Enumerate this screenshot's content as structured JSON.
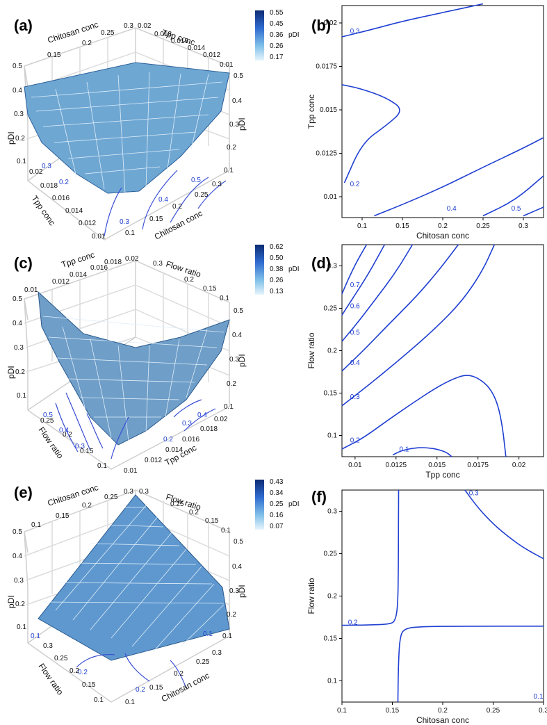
{
  "figure": {
    "colors": {
      "line": "#1f3fd2",
      "axis": "#000000",
      "grid": "#c9c9c9",
      "surface_low": "#e6f3fb",
      "surface_high": "#123c8c"
    }
  },
  "chart_data": [
    {
      "panel": "(a)",
      "type": "heatmap",
      "subtype": "3d-surface",
      "x_label": "Chitosan conc",
      "y_label": "Tpp conc",
      "z_label": "pDI",
      "x_ticks": [
        "0.1",
        "0.15",
        "0.2",
        "0.25",
        "0.3"
      ],
      "y_ticks": [
        "0.01",
        "0.012",
        "0.014",
        "0.016",
        "0.018",
        "0.02"
      ],
      "z_ticks": [
        "0.1",
        "0.2",
        "0.3",
        "0.4",
        "0.5"
      ],
      "legend_title": "pDI",
      "legend_values": [
        "0.55",
        "0.45",
        "0.36",
        "0.26",
        "0.17"
      ],
      "floor_contour_labels": [
        "0.3",
        "0.2",
        "0.5",
        "0.4",
        "0.3"
      ],
      "xlim": [
        0.1,
        0.3
      ],
      "ylim": [
        0.01,
        0.02
      ],
      "zlim": [
        0.1,
        0.5
      ]
    },
    {
      "panel": "(b)",
      "type": "line",
      "subtype": "contour",
      "x_label": "Chitosan conc",
      "y_label": "Tpp conc",
      "x_ticks": [
        "0.1",
        "0.15",
        "0.2",
        "0.25",
        "0.3"
      ],
      "y_ticks": [
        "0.01",
        "0.0125",
        "0.015",
        "0.0175",
        "0.02"
      ],
      "xlim": [
        0.075,
        0.325
      ],
      "ylim": [
        0.0088,
        0.021
      ],
      "contours": [
        {
          "level": "0.3",
          "points": [
            [
              0.075,
              0.0192
            ],
            [
              0.11,
              0.0196
            ],
            [
              0.15,
              0.0201
            ],
            [
              0.2,
              0.0206
            ],
            [
              0.25,
              0.0211
            ]
          ]
        },
        {
          "level": "0.2",
          "points": [
            [
              0.075,
              0.01645
            ],
            [
              0.1,
              0.0162
            ],
            [
              0.13,
              0.0157
            ],
            [
              0.152,
              0.015
            ],
            [
              0.13,
              0.0141
            ],
            [
              0.1,
              0.0131
            ],
            [
              0.078,
              0.0108
            ]
          ]
        },
        {
          "level": "0.4",
          "points": [
            [
              0.115,
              0.0089
            ],
            [
              0.15,
              0.00955
            ],
            [
              0.2,
              0.01055
            ],
            [
              0.25,
              0.0117
            ],
            [
              0.3,
              0.0128
            ],
            [
              0.325,
              0.0134
            ]
          ]
        },
        {
          "level": "0.5",
          "points": [
            [
              0.25,
              0.0089
            ],
            [
              0.29,
              0.0098
            ],
            [
              0.325,
              0.0112
            ]
          ]
        },
        {
          "level": "0.5",
          "points": [
            [
              0.3,
              0.0089
            ],
            [
              0.325,
              0.0094
            ]
          ]
        }
      ],
      "contour_labels": [
        {
          "text": "0.3",
          "x": 0.085,
          "y": 0.0194
        },
        {
          "text": "0.2",
          "x": 0.085,
          "y": 0.0106
        },
        {
          "text": "0.4",
          "x": 0.205,
          "y": 0.0092
        },
        {
          "text": "0.5",
          "x": 0.285,
          "y": 0.0092
        }
      ]
    },
    {
      "panel": "(c)",
      "type": "heatmap",
      "subtype": "3d-surface",
      "x_label": "Tpp conc",
      "y_label": "Flow ratio",
      "z_label": "pDI",
      "x_ticks": [
        "0.01",
        "0.012",
        "0.014",
        "0.016",
        "0.018",
        "0.02"
      ],
      "y_ticks": [
        "0.1",
        "0.15",
        "0.2",
        "0.25",
        "0.3"
      ],
      "z_ticks": [
        "0.1",
        "0.2",
        "0.3",
        "0.4",
        "0.5"
      ],
      "legend_title": "pDI",
      "legend_values": [
        "0.62",
        "0.50",
        "0.38",
        "0.26",
        "0.13"
      ],
      "floor_contour_labels": [
        "0.5",
        "0.4",
        "0.3",
        "0.2",
        "0.3",
        "0.4"
      ],
      "xlim": [
        0.01,
        0.02
      ],
      "ylim": [
        0.1,
        0.3
      ],
      "zlim": [
        0.1,
        0.5
      ]
    },
    {
      "panel": "(d)",
      "type": "line",
      "subtype": "contour",
      "x_label": "Tpp conc",
      "y_label": "Flow ratio",
      "x_ticks": [
        "0.01",
        "0.0125",
        "0.015",
        "0.0175",
        "0.02"
      ],
      "y_ticks": [
        "0.1",
        "0.15",
        "0.2",
        "0.25",
        "0.3"
      ],
      "xlim": [
        0.0092,
        0.0215
      ],
      "ylim": [
        0.075,
        0.325
      ],
      "contours": [
        {
          "level": "0.7",
          "points": [
            [
              0.0092,
              0.267
            ],
            [
              0.0096,
              0.285
            ],
            [
              0.0101,
              0.305
            ],
            [
              0.0107,
              0.325
            ]
          ]
        },
        {
          "level": "0.6",
          "points": [
            [
              0.0092,
              0.242
            ],
            [
              0.01,
              0.266
            ],
            [
              0.0108,
              0.29
            ],
            [
              0.0118,
              0.325
            ]
          ]
        },
        {
          "level": "0.5",
          "points": [
            [
              0.0092,
              0.211
            ],
            [
              0.0102,
              0.234
            ],
            [
              0.0113,
              0.262
            ],
            [
              0.0125,
              0.293
            ],
            [
              0.0135,
              0.325
            ]
          ]
        },
        {
          "level": "0.4",
          "points": [
            [
              0.0092,
              0.176
            ],
            [
              0.0105,
              0.2
            ],
            [
              0.012,
              0.23
            ],
            [
              0.0138,
              0.265
            ],
            [
              0.0152,
              0.297
            ],
            [
              0.0163,
              0.325
            ]
          ]
        },
        {
          "level": "0.3",
          "points": [
            [
              0.0092,
              0.135
            ],
            [
              0.011,
              0.162
            ],
            [
              0.013,
              0.194
            ],
            [
              0.015,
              0.228
            ],
            [
              0.0166,
              0.26
            ],
            [
              0.0178,
              0.295
            ],
            [
              0.0185,
              0.325
            ]
          ]
        },
        {
          "level": "0.2",
          "points": [
            [
              0.0092,
              0.084
            ],
            [
              0.0105,
              0.097
            ],
            [
              0.012,
              0.118
            ],
            [
              0.0135,
              0.138
            ],
            [
              0.015,
              0.157
            ],
            [
              0.016,
              0.167
            ],
            [
              0.0168,
              0.172
            ],
            [
              0.0175,
              0.168
            ],
            [
              0.0182,
              0.157
            ],
            [
              0.0187,
              0.138
            ],
            [
              0.019,
              0.11
            ],
            [
              0.0192,
              0.075
            ]
          ]
        },
        {
          "level": "0.1",
          "points": [
            [
              0.0123,
              0.077
            ],
            [
              0.0128,
              0.082
            ],
            [
              0.0135,
              0.085
            ],
            [
              0.0142,
              0.086
            ],
            [
              0.015,
              0.084
            ],
            [
              0.0156,
              0.08
            ],
            [
              0.0159,
              0.075
            ]
          ]
        }
      ],
      "contour_labels": [
        {
          "text": "0.7",
          "x": 0.0097,
          "y": 0.275
        },
        {
          "text": "0.6",
          "x": 0.0097,
          "y": 0.25
        },
        {
          "text": "0.5",
          "x": 0.0097,
          "y": 0.219
        },
        {
          "text": "0.4",
          "x": 0.0097,
          "y": 0.183
        },
        {
          "text": "0.3",
          "x": 0.0097,
          "y": 0.143
        },
        {
          "text": "0.2",
          "x": 0.0097,
          "y": 0.092
        },
        {
          "text": "0.1",
          "x": 0.0127,
          "y": 0.081
        }
      ]
    },
    {
      "panel": "(e)",
      "type": "heatmap",
      "subtype": "3d-surface",
      "x_label": "Chitosan conc",
      "y_label": "Flow ratio",
      "z_label": "pDI",
      "x_ticks": [
        "0.1",
        "0.15",
        "0.2",
        "0.25",
        "0.3"
      ],
      "y_ticks": [
        "0.1",
        "0.15",
        "0.2",
        "0.25",
        "0.3"
      ],
      "z_ticks": [
        "0.1",
        "0.2",
        "0.3",
        "0.4",
        "0.5"
      ],
      "legend_title": "pDI",
      "legend_values": [
        "0.43",
        "0.34",
        "0.25",
        "0.16",
        "0.07"
      ],
      "floor_contour_labels": [
        "0.1",
        "0.2",
        "0.2",
        "0.1"
      ],
      "xlim": [
        0.1,
        0.3
      ],
      "ylim": [
        0.1,
        0.3
      ],
      "zlim": [
        0.1,
        0.5
      ]
    },
    {
      "panel": "(f)",
      "type": "line",
      "subtype": "contour",
      "x_label": "Chitosan conc",
      "y_label": "Flow ratio",
      "x_ticks": [
        "0.1",
        "0.15",
        "0.2",
        "0.25",
        "0.3"
      ],
      "y_ticks": [
        "0.1",
        "0.15",
        "0.2",
        "0.25",
        "0.3"
      ],
      "xlim": [
        0.1,
        0.3
      ],
      "ylim": [
        0.075,
        0.325
      ],
      "contours": [
        {
          "level": "0.2",
          "points": [
            [
              0.1,
              0.1655
            ],
            [
              0.13,
              0.166
            ],
            [
              0.148,
              0.167
            ],
            [
              0.153,
              0.171
            ],
            [
              0.1555,
              0.19
            ],
            [
              0.156,
              0.24
            ],
            [
              0.1562,
              0.325
            ]
          ]
        },
        {
          "level": "0.2",
          "points": [
            [
              0.1555,
              0.075
            ],
            [
              0.156,
              0.12
            ],
            [
              0.1575,
              0.152
            ],
            [
              0.162,
              0.162
            ],
            [
              0.18,
              0.164
            ],
            [
              0.22,
              0.1645
            ],
            [
              0.3,
              0.1645
            ]
          ]
        },
        {
          "level": "0.3",
          "points": [
            [
              0.222,
              0.325
            ],
            [
              0.235,
              0.304
            ],
            [
              0.25,
              0.285
            ],
            [
              0.265,
              0.27
            ],
            [
              0.28,
              0.257
            ],
            [
              0.3,
              0.244
            ]
          ]
        }
      ],
      "contour_labels": [
        {
          "text": "0.2",
          "x": 0.106,
          "y": 0.1665
        },
        {
          "text": "0.3",
          "x": 0.226,
          "y": 0.319
        },
        {
          "text": "0.1",
          "x": 0.29,
          "y": 0.079
        }
      ]
    }
  ]
}
